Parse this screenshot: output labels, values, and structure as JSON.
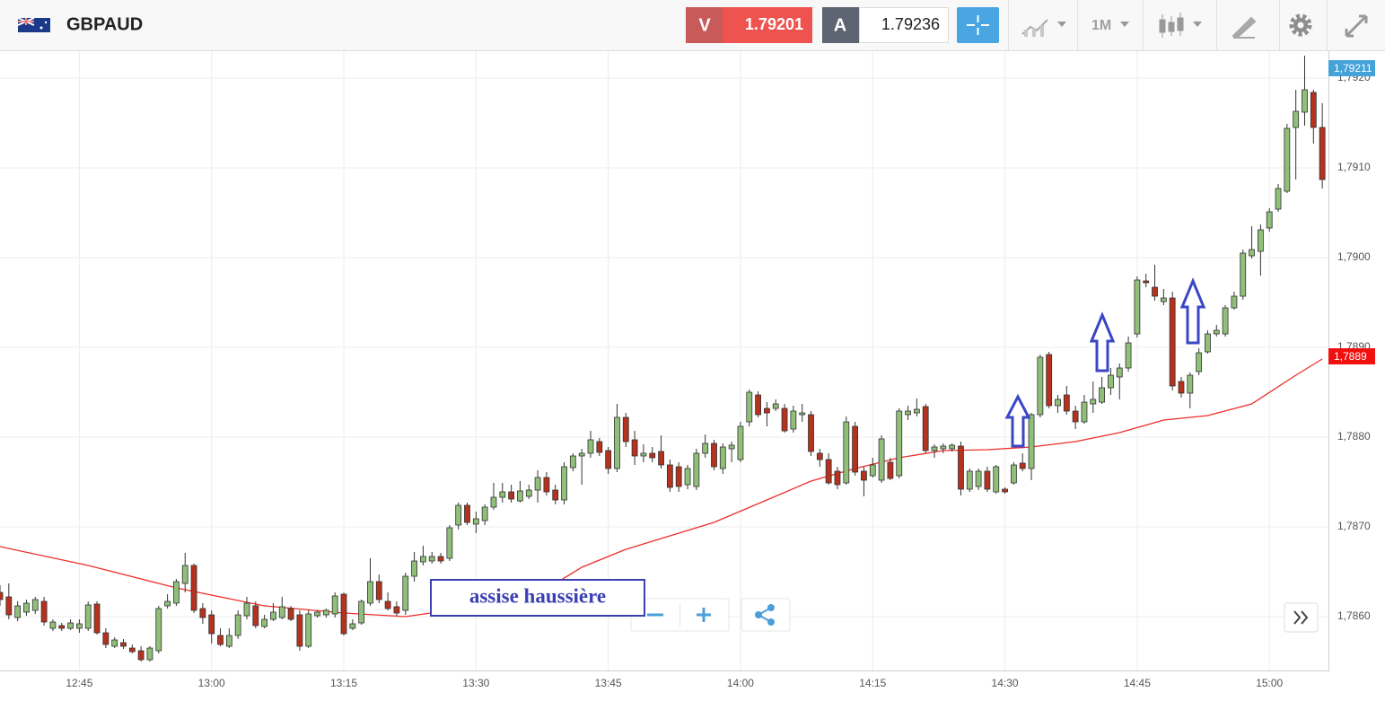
{
  "toolbar": {
    "symbol": "GBPAUD",
    "sell_label": "V",
    "sell_price": 1.79201,
    "buy_label": "A",
    "buy_price": 1.79236,
    "timeframe": "1M"
  },
  "chart_data": {
    "type": "candlestick",
    "up_color": "#8fbf78",
    "down_color": "#b5321f",
    "xlim": [
      0,
      150.7
    ],
    "ylim": [
      1.78539,
      1.7923
    ],
    "grid": true,
    "xticks": [
      {
        "value": 9,
        "label": "12:45"
      },
      {
        "value": 24,
        "label": "13:00"
      },
      {
        "value": 39,
        "label": "13:15"
      },
      {
        "value": 54,
        "label": "13:30"
      },
      {
        "value": 69,
        "label": "13:45"
      },
      {
        "value": 84,
        "label": "14:00"
      },
      {
        "value": 99,
        "label": "14:15"
      },
      {
        "value": 114,
        "label": "14:30"
      },
      {
        "value": 129,
        "label": "14:45"
      },
      {
        "value": 144,
        "label": "15:00"
      }
    ],
    "yticks": [
      {
        "value": 1.786,
        "label": "1,7860"
      },
      {
        "value": 1.787,
        "label": "1,7870"
      },
      {
        "value": 1.788,
        "label": "1,7880"
      },
      {
        "value": 1.789,
        "label": "1,7890"
      },
      {
        "value": 1.79,
        "label": "1,7900"
      },
      {
        "value": 1.791,
        "label": "1,7910"
      },
      {
        "value": 1.792,
        "label": "1,7920"
      }
    ],
    "open": [
      1.78627,
      1.78622,
      1.78599,
      1.78605,
      1.78607,
      1.78617,
      1.78587,
      1.7859,
      1.78587,
      1.78587,
      1.78587,
      1.78614,
      1.78582,
      1.78567,
      1.78571,
      1.78565,
      1.78562,
      1.78552,
      1.78562,
      1.78612,
      1.78615,
      1.78637,
      1.78657,
      1.78609,
      1.78602,
      1.78579,
      1.78567,
      1.78579,
      1.78601,
      1.78612,
      1.78589,
      1.78597,
      1.78599,
      1.78609,
      1.78602,
      1.78567,
      1.78601,
      1.78602,
      1.78603,
      1.78625,
      1.78587,
      1.78593,
      1.78615,
      1.78639,
      1.78617,
      1.78611,
      1.78607,
      1.78645,
      1.78661,
      1.78662,
      1.78667,
      1.78665,
      1.78702,
      1.78724,
      1.78703,
      1.78707,
      1.78722,
      1.78733,
      1.78739,
      1.78729,
      1.78734,
      1.78741,
      1.78755,
      1.78741,
      1.7873,
      1.78766,
      1.78779,
      1.78782,
      1.78795,
      1.78785,
      1.78765,
      1.78822,
      1.78797,
      1.78779,
      1.78782,
      1.78784,
      1.78769,
      1.78767,
      1.78747,
      1.78745,
      1.78782,
      1.78793,
      1.78765,
      1.78787,
      1.78775,
      1.78817,
      1.78847,
      1.78832,
      1.78832,
      1.78832,
      1.78809,
      1.78825,
      1.78825,
      1.78782,
      1.78775,
      1.78762,
      1.78749,
      1.78812,
      1.78762,
      1.78757,
      1.78752,
      1.78772,
      1.78757,
      1.78825,
      1.78827,
      1.78834,
      1.78785,
      1.78787,
      1.78787,
      1.7879,
      1.78742,
      1.78745,
      1.78762,
      1.78739,
      1.78742,
      1.78749,
      1.78771,
      1.78765,
      1.78825,
      1.78892,
      1.78835,
      1.78847,
      1.78829,
      1.78817,
      1.78837,
      1.78839,
      1.78855,
      1.78867,
      1.78877,
      1.78915,
      1.78974,
      1.78967,
      1.78951,
      1.78955,
      1.78862,
      1.78849,
      1.78873,
      1.78895,
      1.78915,
      1.78915,
      1.78944,
      1.78957,
      1.79002,
      1.79007,
      1.79033,
      1.79054,
      1.79074,
      1.79145,
      1.79162,
      1.79184,
      1.79145
    ],
    "high": [
      1.78635,
      1.78637,
      1.78617,
      1.78619,
      1.78622,
      1.78622,
      1.78597,
      1.78593,
      1.78597,
      1.78597,
      1.78617,
      1.78617,
      1.78587,
      1.78577,
      1.78575,
      1.78569,
      1.78567,
      1.78567,
      1.78612,
      1.78625,
      1.78642,
      1.78671,
      1.78659,
      1.78615,
      1.78607,
      1.78587,
      1.78587,
      1.78607,
      1.78622,
      1.78617,
      1.78602,
      1.78615,
      1.78622,
      1.78612,
      1.78607,
      1.78607,
      1.78607,
      1.78609,
      1.78627,
      1.78627,
      1.78597,
      1.78619,
      1.78665,
      1.78647,
      1.78627,
      1.78617,
      1.78649,
      1.78672,
      1.78679,
      1.78672,
      1.78671,
      1.78702,
      1.78727,
      1.78727,
      1.78717,
      1.78725,
      1.78749,
      1.78749,
      1.78747,
      1.78751,
      1.78747,
      1.78763,
      1.78761,
      1.78747,
      1.78772,
      1.78782,
      1.78787,
      1.78807,
      1.78799,
      1.78789,
      1.78837,
      1.78827,
      1.78807,
      1.78792,
      1.78789,
      1.78802,
      1.78775,
      1.78772,
      1.78769,
      1.78787,
      1.78803,
      1.78797,
      1.78793,
      1.78795,
      1.78817,
      1.78853,
      1.78851,
      1.78839,
      1.78842,
      1.78837,
      1.78835,
      1.78837,
      1.78829,
      1.78787,
      1.78782,
      1.78767,
      1.78823,
      1.78817,
      1.78767,
      1.78777,
      1.78802,
      1.78777,
      1.78832,
      1.78835,
      1.78843,
      1.78837,
      1.78792,
      1.78793,
      1.78793,
      1.78795,
      1.78765,
      1.78765,
      1.78767,
      1.78769,
      1.78744,
      1.78772,
      1.78782,
      1.78827,
      1.78892,
      1.78895,
      1.78847,
      1.78857,
      1.78835,
      1.78847,
      1.78862,
      1.78867,
      1.78877,
      1.78882,
      1.78912,
      1.78979,
      1.78982,
      1.78992,
      1.78965,
      1.78962,
      1.78867,
      1.78872,
      1.78899,
      1.78919,
      1.78925,
      1.78947,
      1.78962,
      1.79009,
      1.79035,
      1.79037,
      1.79055,
      1.79082,
      1.79149,
      1.79187,
      1.79225,
      1.79187,
      1.79172
    ],
    "low": [
      1.78612,
      1.78597,
      1.78595,
      1.78601,
      1.78603,
      1.7859,
      1.78584,
      1.78584,
      1.78585,
      1.78582,
      1.78584,
      1.7858,
      1.78565,
      1.78565,
      1.78564,
      1.78559,
      1.7855,
      1.7855,
      1.78559,
      1.78609,
      1.78612,
      1.78627,
      1.78604,
      1.78592,
      1.7857,
      1.78567,
      1.78565,
      1.78575,
      1.78597,
      1.78587,
      1.78587,
      1.78595,
      1.78597,
      1.78595,
      1.78562,
      1.78565,
      1.78599,
      1.78599,
      1.78599,
      1.78579,
      1.78585,
      1.78591,
      1.78612,
      1.78615,
      1.78607,
      1.78601,
      1.78602,
      1.78639,
      1.78657,
      1.78659,
      1.78659,
      1.78662,
      1.78697,
      1.78702,
      1.78693,
      1.78702,
      1.78719,
      1.78727,
      1.78727,
      1.78727,
      1.78731,
      1.78727,
      1.78735,
      1.78725,
      1.78725,
      1.78762,
      1.78747,
      1.78777,
      1.78779,
      1.78759,
      1.78761,
      1.78789,
      1.78769,
      1.78772,
      1.78772,
      1.78765,
      1.78739,
      1.78739,
      1.78742,
      1.78741,
      1.78777,
      1.78763,
      1.78759,
      1.78772,
      1.78772,
      1.78812,
      1.78822,
      1.78812,
      1.78829,
      1.78805,
      1.78805,
      1.78817,
      1.78779,
      1.78767,
      1.78747,
      1.78742,
      1.78747,
      1.78757,
      1.78734,
      1.78755,
      1.78749,
      1.78752,
      1.78754,
      1.78819,
      1.78823,
      1.78782,
      1.78777,
      1.78782,
      1.78784,
      1.78735,
      1.78739,
      1.78741,
      1.78739,
      1.78737,
      1.78737,
      1.78747,
      1.78762,
      1.78752,
      1.78822,
      1.78832,
      1.78827,
      1.78825,
      1.78809,
      1.78815,
      1.78827,
      1.78837,
      1.78847,
      1.78842,
      1.78873,
      1.78911,
      1.78967,
      1.78952,
      1.78947,
      1.78852,
      1.78844,
      1.78832,
      1.78869,
      1.78893,
      1.78912,
      1.78912,
      1.78942,
      1.78953,
      1.78999,
      1.7898,
      1.79029,
      1.79051,
      1.79072,
      1.79087,
      1.79147,
      1.79127,
      1.79077
    ],
    "close": [
      1.78619,
      1.78602,
      1.78612,
      1.78615,
      1.78619,
      1.78594,
      1.78594,
      1.78587,
      1.78593,
      1.78592,
      1.78613,
      1.78582,
      1.78569,
      1.78574,
      1.78567,
      1.78561,
      1.78552,
      1.78565,
      1.78609,
      1.78617,
      1.78639,
      1.78657,
      1.78607,
      1.78599,
      1.78581,
      1.78569,
      1.78579,
      1.78602,
      1.78615,
      1.7859,
      1.78597,
      1.78605,
      1.78611,
      1.78597,
      1.78567,
      1.78603,
      1.78605,
      1.78607,
      1.78623,
      1.78581,
      1.78592,
      1.78617,
      1.78639,
      1.78619,
      1.78609,
      1.78604,
      1.78645,
      1.78662,
      1.78667,
      1.78667,
      1.78662,
      1.78699,
      1.78724,
      1.78705,
      1.78709,
      1.78722,
      1.78733,
      1.78739,
      1.78731,
      1.7874,
      1.78741,
      1.78755,
      1.78739,
      1.7873,
      1.78767,
      1.78779,
      1.78782,
      1.78797,
      1.78783,
      1.78765,
      1.78822,
      1.78795,
      1.78779,
      1.78782,
      1.78777,
      1.78769,
      1.78744,
      1.78745,
      1.78765,
      1.78782,
      1.78793,
      1.78767,
      1.78789,
      1.78791,
      1.78812,
      1.7885,
      1.78825,
      1.78827,
      1.78837,
      1.78807,
      1.78829,
      1.78827,
      1.78784,
      1.78775,
      1.78749,
      1.78747,
      1.78817,
      1.78761,
      1.78752,
      1.78769,
      1.78798,
      1.78754,
      1.78829,
      1.78829,
      1.78831,
      1.78785,
      1.78789,
      1.7879,
      1.78791,
      1.78742,
      1.78762,
      1.78762,
      1.78742,
      1.78767,
      1.78739,
      1.78769,
      1.78765,
      1.78825,
      1.78889,
      1.78835,
      1.78842,
      1.78829,
      1.78817,
      1.78839,
      1.78842,
      1.78855,
      1.78869,
      1.78877,
      1.78905,
      1.78975,
      1.78972,
      1.78957,
      1.78955,
      1.78857,
      1.78849,
      1.78869,
      1.78894,
      1.78915,
      1.78919,
      1.78944,
      1.78957,
      1.79005,
      1.79009,
      1.79031,
      1.79051,
      1.79077,
      1.79144,
      1.79163,
      1.79187,
      1.79145,
      1.79087
    ],
    "ma": {
      "color": "#ec2f2a",
      "x": [
        0,
        10,
        20,
        30,
        39,
        46,
        51,
        61,
        63,
        66,
        71,
        76,
        81,
        87,
        92,
        97,
        102,
        107,
        112,
        117,
        122,
        127,
        132,
        137,
        142,
        147,
        150
      ],
      "values": [
        1.78678,
        1.78657,
        1.78632,
        1.78612,
        1.78604,
        1.786,
        1.78607,
        1.78629,
        1.78637,
        1.78655,
        1.78675,
        1.7869,
        1.78705,
        1.7873,
        1.78751,
        1.78765,
        1.78777,
        1.78785,
        1.78786,
        1.78789,
        1.78795,
        1.78805,
        1.78819,
        1.78824,
        1.78837,
        1.78869,
        1.78887
      ]
    },
    "price_tags": [
      {
        "value": 1.79211,
        "label": "1,79211",
        "color": "#45a3d9"
      },
      {
        "value": 1.7889,
        "label": "1,7889",
        "color": "#f01010"
      }
    ],
    "annotation": "assise haussière"
  }
}
